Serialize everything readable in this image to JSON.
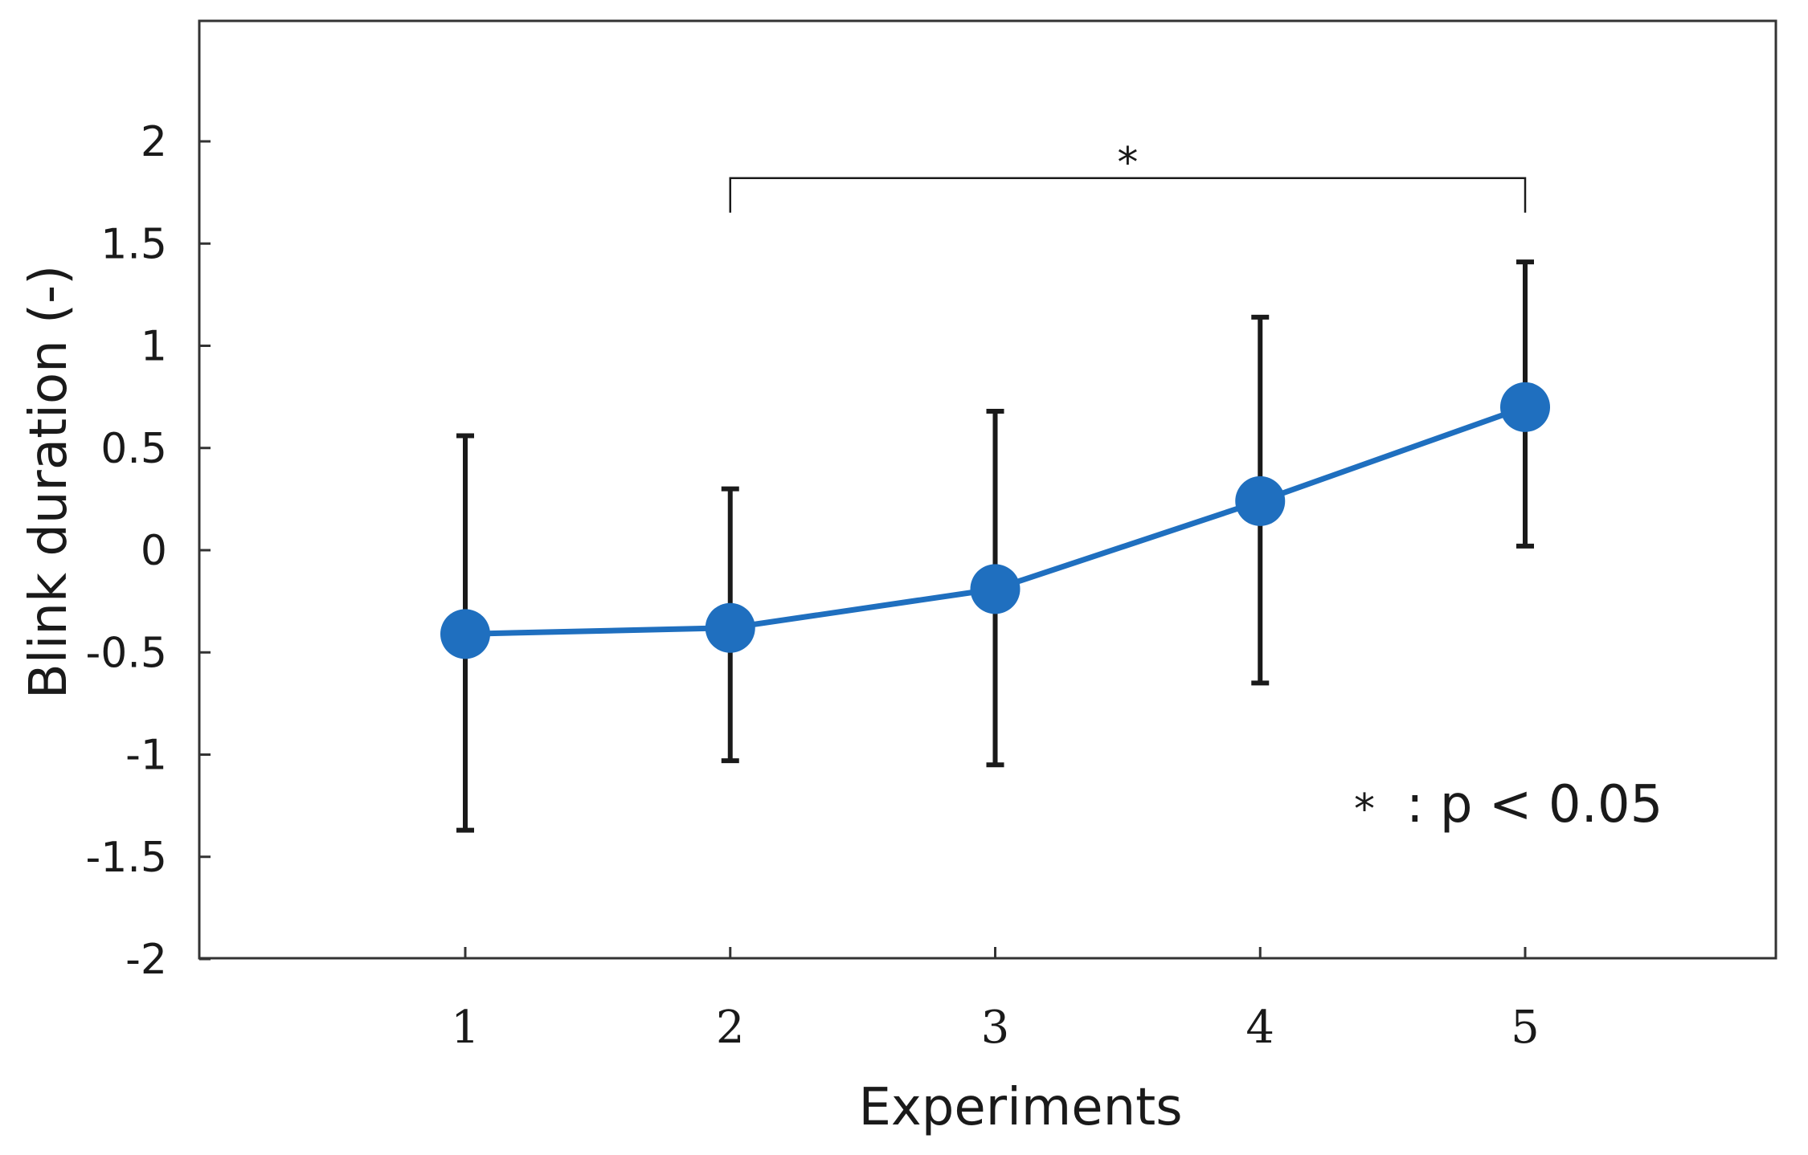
{
  "chart_data": {
    "type": "line",
    "title": "",
    "xlabel": "Experiments",
    "ylabel": "Blink duration (-)",
    "categories": [
      "1",
      "2",
      "3",
      "4",
      "5"
    ],
    "x": [
      1,
      2,
      3,
      4,
      5
    ],
    "series": [
      {
        "name": "Blink duration",
        "values": [
          -0.41,
          -0.38,
          -0.19,
          0.24,
          0.7
        ],
        "error_upper": [
          0.56,
          0.3,
          0.68,
          1.14,
          1.41
        ],
        "error_lower": [
          -1.37,
          -1.03,
          -1.05,
          -0.65,
          0.02
        ],
        "color": "#1f6fbf"
      }
    ],
    "xlim": [
      0,
      6
    ],
    "ylim": [
      -2,
      2.6
    ],
    "yticks": [
      -2,
      -1.5,
      -1,
      -0.5,
      0,
      0.5,
      1,
      1.5,
      2
    ],
    "ytick_labels": [
      "-2",
      "-1.5",
      "-1",
      "-0.5",
      "0",
      "0.5",
      "1",
      "1.5",
      "2"
    ],
    "grid": false,
    "annotations": {
      "significance_bracket": {
        "from": 2,
        "to": 5,
        "y": 1.82,
        "label": "*"
      },
      "legend_note": {
        "star": "*",
        "text": ": p < 0.05",
        "placement": "lower-right"
      }
    },
    "colors": {
      "line": "#1f6fbf",
      "marker": "#1f6fbf",
      "error_bar": "#1a1a1a",
      "axis": "#333333"
    }
  }
}
